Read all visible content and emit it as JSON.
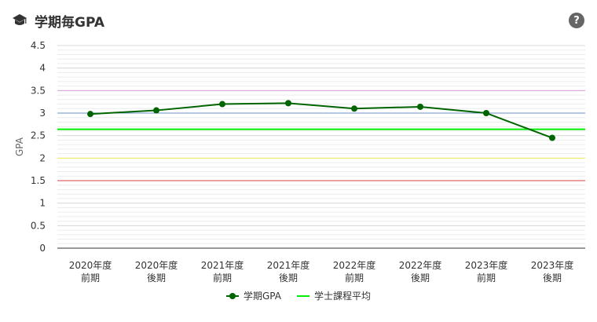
{
  "header": {
    "title": "学期毎GPA",
    "icon": "graduation-cap-icon",
    "help_label": "?"
  },
  "chart_data": {
    "type": "line",
    "ylabel": "GPA",
    "ylim": [
      0,
      4.5
    ],
    "yticks": [
      "0",
      "0.5",
      "1",
      "1.5",
      "2",
      "2.5",
      "3",
      "3.5",
      "4",
      "4.5"
    ],
    "categories": [
      [
        "2020年度",
        "前期"
      ],
      [
        "2020年度",
        "後期"
      ],
      [
        "2021年度",
        "前期"
      ],
      [
        "2021年度",
        "後期"
      ],
      [
        "2022年度",
        "前期"
      ],
      [
        "2022年度",
        "後期"
      ],
      [
        "2023年度",
        "前期"
      ],
      [
        "2023年度",
        "後期"
      ]
    ],
    "series": [
      {
        "name": "学期GPA",
        "color": "#006400",
        "values": [
          2.98,
          3.06,
          3.2,
          3.22,
          3.1,
          3.14,
          3.0,
          2.45
        ]
      }
    ],
    "reference_lines": [
      {
        "name": "学士課程平均",
        "value": 2.64,
        "color": "#00ee00"
      }
    ],
    "band_lines": [
      {
        "value": 3.5,
        "color": "#e0a0e0"
      },
      {
        "value": 3.0,
        "color": "#6f8fd0"
      },
      {
        "value": 2.0,
        "color": "#f0f060"
      },
      {
        "value": 1.5,
        "color": "#d04040"
      }
    ],
    "grid": true,
    "legend_position": "bottom"
  }
}
